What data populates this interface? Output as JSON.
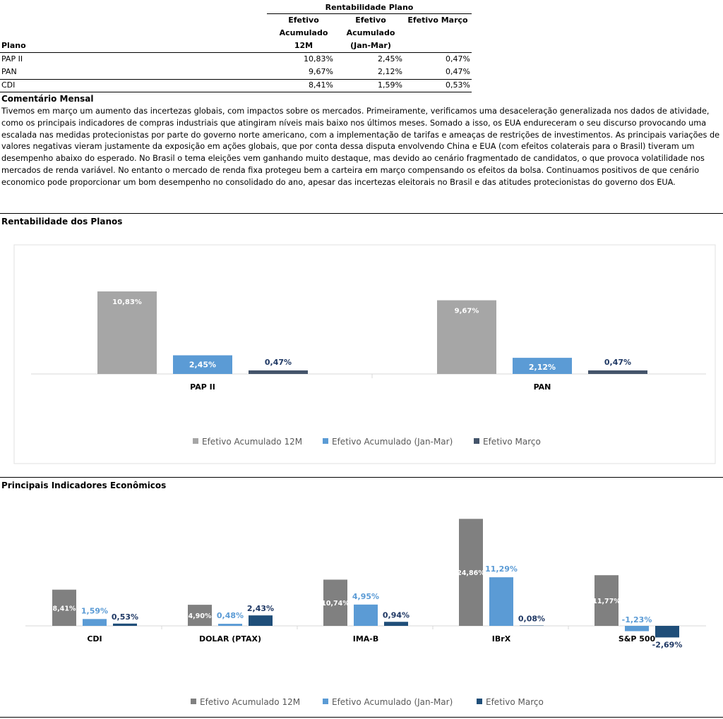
{
  "table": {
    "group_header": "Rentabilidade Plano",
    "col_plano": "Plano",
    "col1": [
      "Efetivo",
      "Acumulado",
      "12M"
    ],
    "col2": [
      "Efetivo",
      "Acumulado",
      "(Jan-Mar)"
    ],
    "col3": "Efetivo Março",
    "rows": [
      {
        "plano": "PAP II",
        "v1": "10,83%",
        "v2": "2,45%",
        "v3": "0,47%"
      },
      {
        "plano": "PAN",
        "v1": "9,67%",
        "v2": "2,12%",
        "v3": "0,47%"
      },
      {
        "plano": "CDI",
        "v1": "8,41%",
        "v2": "1,59%",
        "v3": "0,53%"
      }
    ]
  },
  "comment": {
    "title": "Comentário Mensal",
    "text": "Tivemos em  março um aumento das incertezas globais, com impactos sobre os mercados. Primeiramente, verificamos uma desaceleração generalizada nos dados de atividade, como os principais indicadores de compras industriais  que atingiram níveis mais baixo nos últimos meses. Somado a isso, os EUA endureceram o seu discurso provocando uma escalada nas medidas protecionistas por parte do governo norte americano, com a implementação de tarifas e ameaças de restrições de investimentos. As principais variações de valores negativas vieram justamente da exposição em ações globais, que por conta dessa disputa envolvendo China e EUA (com efeitos colaterais para o Brasil) tiveram um desempenho abaixo do esperado. No Brasil o tema eleições vem ganhando muito destaque, mas devido ao cenário fragmentado de candidatos, o que provoca volatilidade nos mercados de renda variável. No entanto o mercado de renda fixa protegeu bem a carteira em março compensando os efeitos da bolsa. Continuamos positivos de que cenário economico pode proporcionar um bom desempenho no consolidado do ano, apesar das incertezas eleitorais no Brasil e das atitudes protecionistas do governo dos EUA."
  },
  "section1_title": "Rentabilidade dos Planos",
  "section2_title": "Principais Indicadores Econômicos",
  "colors": {
    "chart1": [
      "#a6a6a6",
      "#5b9bd5",
      "#44546a"
    ],
    "chart2": [
      "#808080",
      "#5b9bd5",
      "#1f4e79"
    ],
    "label_blue": "#5b9bd5",
    "label_dark": "#1f3864"
  },
  "chart_data": [
    {
      "type": "bar",
      "categories": [
        "PAP II",
        "PAN"
      ],
      "series": [
        {
          "name": "Efetivo Acumulado 12M",
          "values": [
            10.83,
            9.67
          ],
          "labels": [
            "10,83%",
            "9,67%"
          ]
        },
        {
          "name": "Efetivo Acumulado (Jan-Mar)",
          "values": [
            2.45,
            2.12
          ],
          "labels": [
            "2,45%",
            "2,12%"
          ]
        },
        {
          "name": "Efetivo Março",
          "values": [
            0.47,
            0.47
          ],
          "labels": [
            "0,47%",
            "0,47%"
          ]
        }
      ],
      "ylim": [
        0,
        14
      ],
      "legend": "bottom",
      "grid": false
    },
    {
      "type": "bar",
      "categories": [
        "CDI",
        "DOLAR (PTAX)",
        "IMA-B",
        "IBrX",
        "S&P 500"
      ],
      "series": [
        {
          "name": "Efetivo Acumulado 12M",
          "values": [
            8.41,
            4.9,
            10.74,
            24.86,
            11.77
          ],
          "labels": [
            "8,41%",
            "4,90%",
            "10,74%",
            "24,86%",
            "11,77%"
          ]
        },
        {
          "name": "Efetivo Acumulado (Jan-Mar)",
          "values": [
            1.59,
            0.48,
            4.95,
            11.29,
            -1.23
          ],
          "labels": [
            "1,59%",
            "0,48%",
            "4,95%",
            "11,29%",
            "-1,23%"
          ]
        },
        {
          "name": "Efetivo Março",
          "values": [
            0.53,
            2.43,
            0.94,
            0.08,
            -2.69
          ],
          "labels": [
            "0,53%",
            "2,43%",
            "0,94%",
            "0,08%",
            "-2,69%"
          ]
        }
      ],
      "ylim": [
        -5,
        26
      ],
      "legend": "bottom",
      "grid": false
    }
  ]
}
